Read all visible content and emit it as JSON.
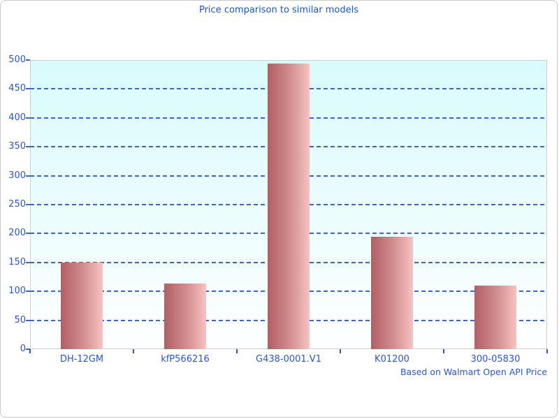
{
  "page": {
    "title": "Price comparison to similar models",
    "footer_note": "Based on Walmart Open API Price"
  },
  "chart_data": {
    "type": "bar",
    "title": "Price comparison to similar models",
    "categories": [
      "DH-12GM",
      "kfP566216",
      "G438-0001.V1",
      "K01200",
      "300-05830"
    ],
    "values": [
      150,
      113,
      494,
      194,
      110
    ],
    "xlabel": "",
    "ylabel": "",
    "ylim": [
      0,
      500
    ],
    "ytick_step": 50,
    "ytick_labels": [
      "0",
      "50",
      "100",
      "150",
      "200",
      "250",
      "300",
      "350",
      "400",
      "450",
      "500"
    ],
    "grid": "horizontal dashed, on",
    "legend": "none",
    "annotation": "Based on Walmart Open API Price",
    "colors": {
      "bar_gradient_left": "#b25f63",
      "bar_gradient_right": "#f9c2c2",
      "plot_bg_top": "#d9fbfc",
      "plot_bg_bottom": "#feffff",
      "text_blue": "#1b55cc",
      "gridline_blue": "#3d64c9",
      "border_gray": "#cfcfcf"
    }
  }
}
